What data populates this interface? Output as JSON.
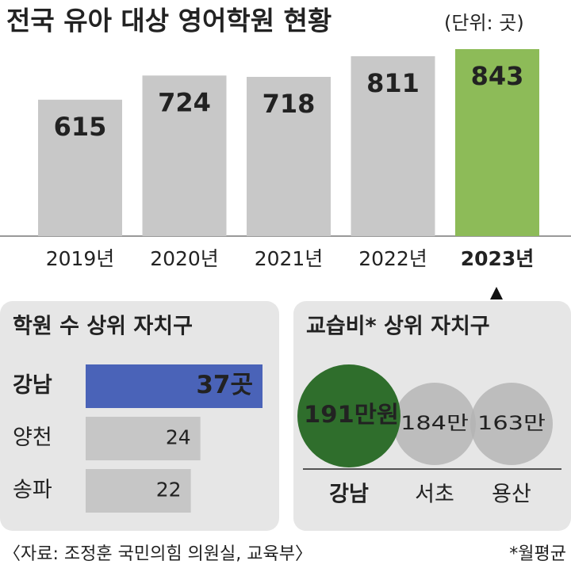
{
  "chart_data": [
    {
      "type": "bar",
      "title": "전국 유아 대상 영어학원 현황",
      "subtitle": "(단위: 곳)",
      "categories": [
        "2019년",
        "2020년",
        "2021년",
        "2022년",
        "2023년"
      ],
      "values": [
        615,
        724,
        718,
        811,
        843
      ],
      "colors": [
        "#c8c8c8",
        "#c8c8c8",
        "#c8c8c8",
        "#c8c8c8",
        "#8dbb58"
      ]
    },
    {
      "type": "hbar",
      "title": "학원 수 상위 자치구",
      "title_color": "#3a5ab4",
      "categories": [
        "강남",
        "양천",
        "송파"
      ],
      "values": [
        37,
        24,
        22
      ],
      "value_labels": [
        "37곳",
        "24",
        "22"
      ],
      "colors": [
        "#4a63b8",
        "#c6c6c6",
        "#c6c6c6"
      ]
    },
    {
      "type": "bubble",
      "title": "교습비* 상위 자치구",
      "title_color": "#3b8a2f",
      "categories": [
        "강남",
        "서초",
        "용산"
      ],
      "values": [
        191,
        184,
        163
      ],
      "value_labels": [
        "191만원",
        "184만",
        "163만"
      ],
      "colors": [
        "#2f6e2c",
        "#b3b3b3",
        "#b3b3b3"
      ]
    }
  ],
  "source": "〈자료: 조정훈 국민의힘 의원실, 교육부〉",
  "note": "*월평균"
}
